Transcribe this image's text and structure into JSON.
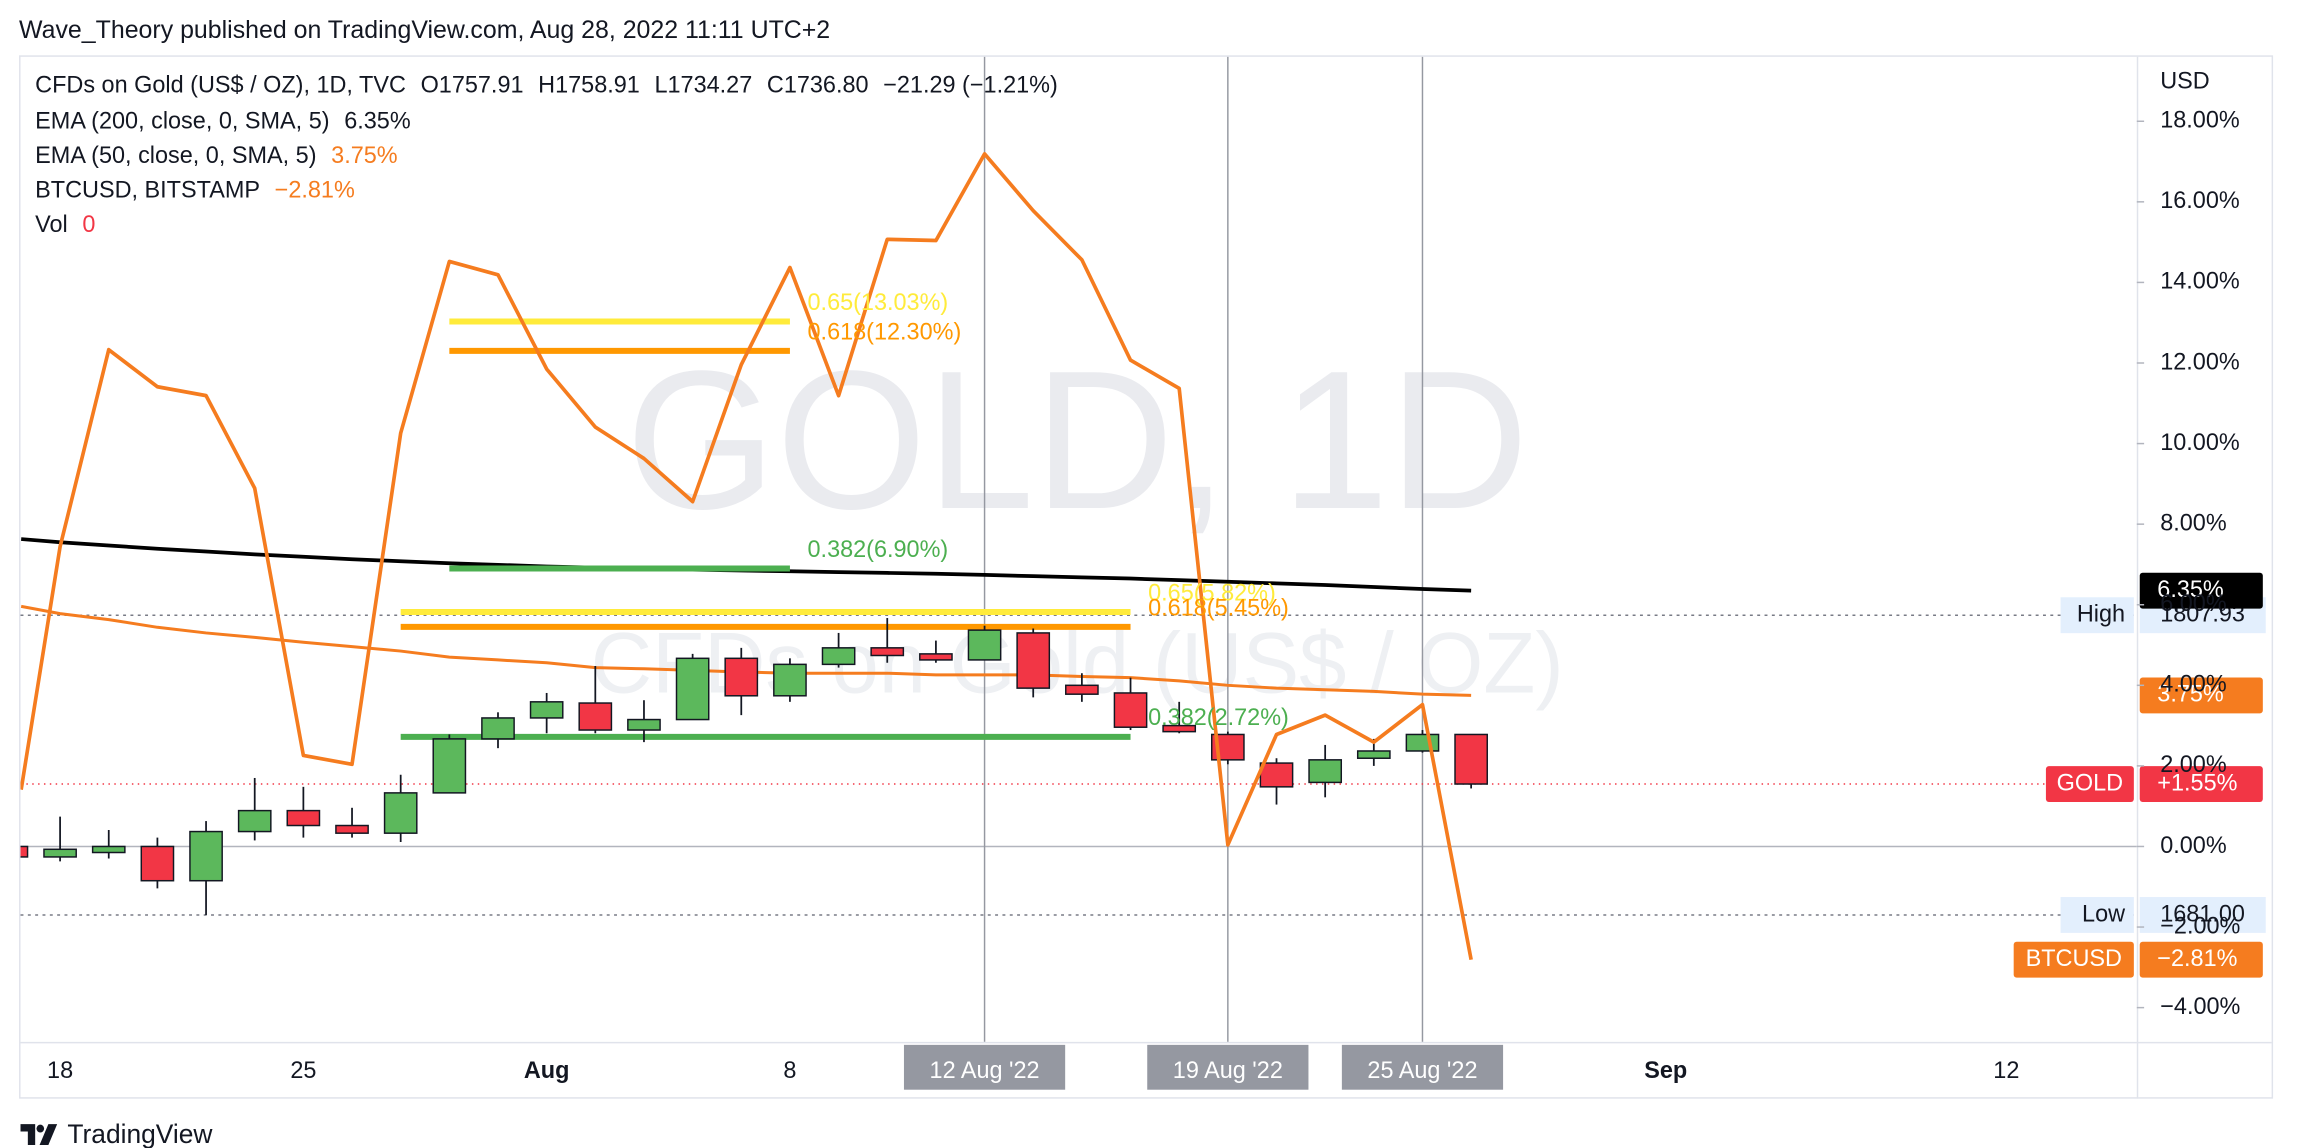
{
  "header": "Wave_Theory published on TradingView.com, Aug 28, 2022 11:11 UTC+2",
  "footer": "TradingView",
  "chart_data": {
    "type": "candlestick",
    "symbol": "CFDs on Gold (US$ / OZ), 1D, TVC",
    "ohlc_legend": [
      "O1757.91",
      "H1758.91",
      "L1734.27",
      "C1736.80",
      "−21.29 (−1.21%)"
    ],
    "watermark": [
      "GOLD, 1D",
      "CFDs on Gold (US$ / OZ)"
    ],
    "currency": "USD",
    "categories": [
      null,
      "18",
      null,
      null,
      null,
      null,
      "25",
      null,
      null,
      null,
      null,
      "Aug",
      null,
      null,
      null,
      null,
      "8",
      null,
      null,
      null,
      "12 Aug '22",
      null,
      null,
      null,
      null,
      "19 Aug '22",
      null,
      null,
      null,
      "25 Aug '22",
      null,
      null,
      null,
      null,
      "Sep",
      null,
      null,
      null,
      null,
      null,
      null,
      "12",
      null,
      null
    ],
    "highlight_categories": [
      20,
      25,
      29
    ],
    "open": [
      0,
      -0.26,
      -0.15,
      0,
      -0.85,
      0.37,
      0.89,
      0.52,
      0.33,
      1.33,
      2.67,
      3.19,
      3.56,
      2.89,
      3.15,
      4.67,
      3.74,
      4.52,
      4.93,
      4.78,
      4.63,
      5.3,
      4.0,
      3.81,
      3.0,
      2.78,
      2.07,
      1.59,
      2.19,
      2.37,
      2.78,
      null,
      null,
      null,
      null,
      null,
      null,
      null,
      null,
      null,
      null,
      null,
      null,
      null
    ],
    "high": [
      0,
      0.74,
      0.41,
      0.22,
      0.63,
      1.7,
      1.48,
      0.96,
      1.78,
      2.78,
      3.33,
      3.81,
      4.48,
      3.63,
      4.78,
      4.93,
      4.67,
      5.3,
      5.67,
      5.11,
      5.48,
      5.41,
      4.3,
      4.19,
      3.59,
      2.85,
      2.19,
      2.52,
      2.67,
      2.89,
      2.78,
      null,
      null,
      null,
      null,
      null,
      null,
      null,
      null,
      null,
      null,
      null,
      null,
      null
    ],
    "low": [
      -0.3,
      -0.37,
      -0.3,
      -1.04,
      -1.7,
      0.15,
      0.22,
      0.22,
      0.11,
      1.33,
      2.44,
      2.81,
      2.81,
      2.59,
      3.15,
      3.26,
      3.59,
      4.44,
      4.56,
      4.56,
      4.63,
      3.7,
      3.59,
      2.89,
      2.81,
      2.04,
      1.04,
      1.22,
      2.0,
      2.33,
      1.44,
      null,
      null,
      null,
      null,
      null,
      null,
      null,
      null,
      null,
      null,
      null,
      null,
      null
    ],
    "close": [
      -0.26,
      -0.07,
      0,
      -0.85,
      0.37,
      0.89,
      0.52,
      0.33,
      1.33,
      2.67,
      3.19,
      3.59,
      2.89,
      3.15,
      4.67,
      3.74,
      4.52,
      4.93,
      4.74,
      4.63,
      5.37,
      3.93,
      3.78,
      2.96,
      2.85,
      2.15,
      1.48,
      2.15,
      2.37,
      2.78,
      1.55,
      null,
      null,
      null,
      null,
      null,
      null,
      null,
      null,
      null,
      null,
      null,
      null,
      null
    ],
    "up_color": "#5cb85c",
    "down_color": "#f23645",
    "series": [
      {
        "name": "EMA (200, close, 0, SMA, 5)",
        "legend_value": "6.35%",
        "color": "#000000",
        "values": [
          7.63,
          7.55,
          7.47,
          7.39,
          7.32,
          7.25,
          7.19,
          7.13,
          7.08,
          7.03,
          6.99,
          6.95,
          6.92,
          6.89,
          6.87,
          6.85,
          6.83,
          6.81,
          6.79,
          6.77,
          6.74,
          6.71,
          6.68,
          6.65,
          6.61,
          6.57,
          6.53,
          6.49,
          6.44,
          6.39,
          6.35,
          null,
          null,
          null,
          null,
          null,
          null,
          null,
          null,
          null,
          null,
          null,
          null,
          null
        ]
      },
      {
        "name": "EMA (50, close, 0, SMA, 5)",
        "legend_value": "3.75%",
        "color": "#f57c1f",
        "values": [
          5.96,
          5.78,
          5.63,
          5.44,
          5.3,
          5.19,
          5.07,
          4.96,
          4.85,
          4.7,
          4.63,
          4.56,
          4.44,
          4.41,
          4.37,
          4.33,
          4.3,
          4.3,
          4.3,
          4.26,
          4.26,
          4.26,
          4.22,
          4.19,
          4.11,
          4.0,
          3.93,
          3.89,
          3.85,
          3.78,
          3.75,
          null,
          null,
          null,
          null,
          null,
          null,
          null,
          null,
          null,
          null,
          null,
          null,
          null
        ]
      },
      {
        "name": "BTCUSD, BITSTAMP",
        "legend_value": "−2.81%",
        "color": "#f57c1f",
        "values": [
          1.41,
          7.44,
          12.33,
          11.41,
          11.19,
          8.89,
          2.26,
          2.04,
          10.26,
          14.52,
          14.19,
          11.85,
          10.41,
          9.63,
          8.56,
          11.96,
          14.37,
          11.19,
          15.07,
          15.04,
          17.19,
          15.78,
          14.56,
          12.07,
          11.37,
          0.04,
          2.78,
          3.26,
          2.59,
          3.52,
          -2.81,
          null,
          null,
          null,
          null,
          null,
          null,
          null,
          null,
          null,
          null,
          null,
          null,
          null
        ]
      }
    ],
    "volume_legend": {
      "name": "Vol",
      "value": "0"
    },
    "fib_levels": [
      {
        "label": "0.65(13.03%)",
        "level": 13.03,
        "color": "#ffeb3b"
      },
      {
        "label": "0.618(12.30%)",
        "level": 12.3,
        "color": "#ff9800"
      },
      {
        "label": "0.382(6.90%)",
        "level": 6.9,
        "color": "#4caf50"
      },
      {
        "label": "0.65(5.82%)",
        "level": 5.82,
        "color": "#ffeb3b"
      },
      {
        "label": "0.618(5.45%)",
        "level": 5.45,
        "color": "#ff9800"
      },
      {
        "label": "0.382(2.72%)",
        "level": 2.72,
        "color": "#4caf50"
      }
    ],
    "price_lines": [
      {
        "label": "High",
        "text": "1807.93",
        "level": 5.74
      },
      {
        "label": "Low",
        "text": "1681.00",
        "level": -1.7
      }
    ],
    "badges": [
      {
        "text": "6.35%",
        "level": 6.35,
        "color": "#000000"
      },
      {
        "text": "3.75%",
        "level": 3.75,
        "color": "#f57c1f"
      },
      {
        "name": "GOLD",
        "text": "+1.55%",
        "level": 1.55,
        "color": "#f23645"
      },
      {
        "name": "BTCUSD",
        "text": "−2.81%",
        "level": -2.81,
        "color": "#f57c1f"
      }
    ],
    "ylim": [
      -4.85,
      19.6
    ],
    "yticks": [
      {
        "value": -4,
        "label": "−4.00%"
      },
      {
        "value": -2,
        "label": "−2.00%"
      },
      {
        "value": 0,
        "label": "0.00%"
      },
      {
        "value": 2,
        "label": "2.00%"
      },
      {
        "value": 4,
        "label": "4.00%"
      },
      {
        "value": 6,
        "label": "6.00%"
      },
      {
        "value": 8,
        "label": "8.00%"
      },
      {
        "value": 10,
        "label": "10.00%"
      },
      {
        "value": 12,
        "label": "12.00%"
      },
      {
        "value": 14,
        "label": "14.00%"
      },
      {
        "value": 16,
        "label": "16.00%"
      },
      {
        "value": 18,
        "label": "18.00%"
      }
    ],
    "zero_line": true
  }
}
